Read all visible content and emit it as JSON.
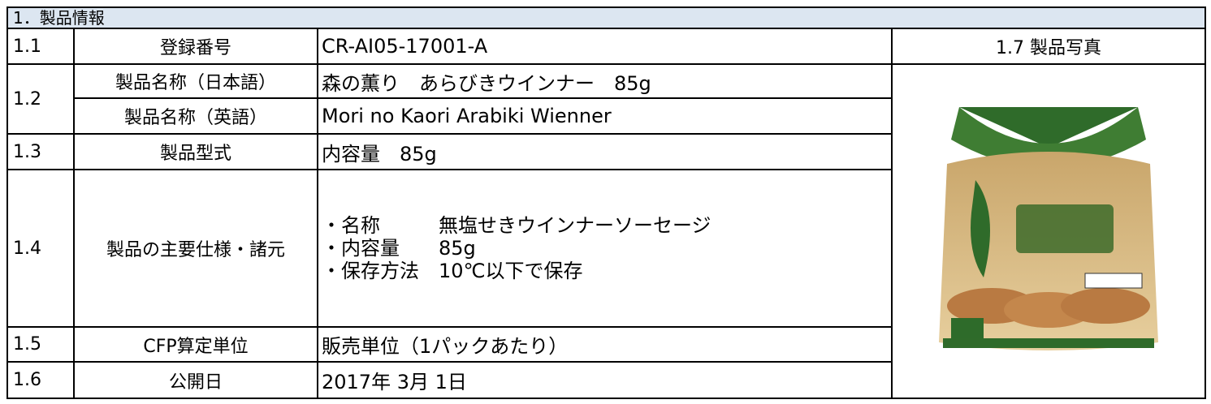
{
  "section_title": "1．製品情報",
  "table": {
    "photo_header": "1.7 製品写真",
    "rows": [
      {
        "number": "1.1",
        "items": [
          {
            "label": "登録番号",
            "value": "CR-AI05-17001-A"
          }
        ]
      },
      {
        "number": "1.2",
        "items": [
          {
            "label": "製品名称（日本語）",
            "value": "森の薫り　あらびきウインナー　85g"
          },
          {
            "label": "製品名称（英語）",
            "value": "Mori no Kaori Arabiki Wienner"
          }
        ]
      },
      {
        "number": "1.3",
        "items": [
          {
            "label": "製品型式",
            "value": "内容量　85g"
          }
        ]
      },
      {
        "number": "1.4",
        "items": [
          {
            "label": "製品の主要仕様・諸元",
            "lines": [
              "・名称　　　無塩せきウインナーソーセージ",
              "・内容量　　85g",
              "・保存方法　10℃以下で保存"
            ]
          }
        ]
      },
      {
        "number": "1.5",
        "items": [
          {
            "label": "CFP算定単位",
            "value": "販売単位（1パックあたり）"
          }
        ]
      },
      {
        "number": "1.6",
        "items": [
          {
            "label": "公開日",
            "value": "2017年 3月 1日"
          }
        ]
      }
    ]
  }
}
